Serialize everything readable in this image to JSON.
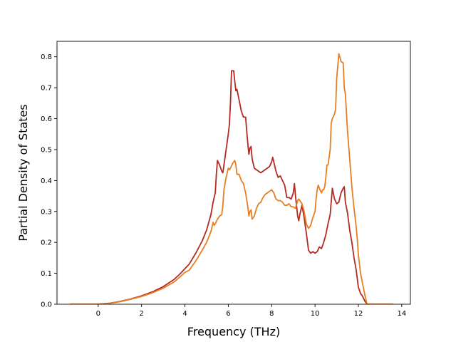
{
  "chart_data": {
    "type": "line",
    "title": "",
    "xlabel": "Frequency (THz)",
    "ylabel": "Partial Density of States",
    "xlim": [
      -1.9,
      14.4
    ],
    "ylim": [
      0.0,
      0.85
    ],
    "xticks": [
      0,
      2,
      4,
      6,
      8,
      10,
      12,
      14
    ],
    "yticks": [
      0.0,
      0.1,
      0.2,
      0.3,
      0.4,
      0.5,
      0.6,
      0.7,
      0.8
    ],
    "xtick_labels": [
      "0",
      "2",
      "4",
      "6",
      "8",
      "10",
      "12",
      "14"
    ],
    "ytick_labels": [
      "0.0",
      "0.1",
      "0.2",
      "0.3",
      "0.4",
      "0.5",
      "0.6",
      "0.7",
      "0.8"
    ],
    "grid": false,
    "legend": "none",
    "series": [
      {
        "color": "#b22a22",
        "points": [
          [
            -1.3,
            0.0
          ],
          [
            0.0,
            0.0
          ],
          [
            0.5,
            0.003
          ],
          [
            1.0,
            0.009
          ],
          [
            1.5,
            0.017
          ],
          [
            2.0,
            0.027
          ],
          [
            2.5,
            0.04
          ],
          [
            3.0,
            0.057
          ],
          [
            3.5,
            0.08
          ],
          [
            3.8,
            0.1
          ],
          [
            4.0,
            0.115
          ],
          [
            4.2,
            0.13
          ],
          [
            4.5,
            0.165
          ],
          [
            4.8,
            0.205
          ],
          [
            5.0,
            0.24
          ],
          [
            5.2,
            0.29
          ],
          [
            5.3,
            0.33
          ],
          [
            5.4,
            0.36
          ],
          [
            5.45,
            0.42
          ],
          [
            5.5,
            0.465
          ],
          [
            5.6,
            0.45
          ],
          [
            5.7,
            0.43
          ],
          [
            5.75,
            0.425
          ],
          [
            5.8,
            0.45
          ],
          [
            5.9,
            0.5
          ],
          [
            6.0,
            0.55
          ],
          [
            6.05,
            0.58
          ],
          [
            6.1,
            0.65
          ],
          [
            6.15,
            0.755
          ],
          [
            6.25,
            0.755
          ],
          [
            6.3,
            0.72
          ],
          [
            6.35,
            0.69
          ],
          [
            6.4,
            0.695
          ],
          [
            6.5,
            0.66
          ],
          [
            6.6,
            0.625
          ],
          [
            6.7,
            0.605
          ],
          [
            6.8,
            0.605
          ],
          [
            6.85,
            0.56
          ],
          [
            6.9,
            0.52
          ],
          [
            6.95,
            0.485
          ],
          [
            7.0,
            0.505
          ],
          [
            7.05,
            0.51
          ],
          [
            7.1,
            0.47
          ],
          [
            7.2,
            0.44
          ],
          [
            7.4,
            0.43
          ],
          [
            7.5,
            0.425
          ],
          [
            7.6,
            0.43
          ],
          [
            7.7,
            0.435
          ],
          [
            7.8,
            0.44
          ],
          [
            7.9,
            0.445
          ],
          [
            8.0,
            0.46
          ],
          [
            8.05,
            0.475
          ],
          [
            8.1,
            0.46
          ],
          [
            8.2,
            0.43
          ],
          [
            8.3,
            0.41
          ],
          [
            8.4,
            0.415
          ],
          [
            8.5,
            0.4
          ],
          [
            8.6,
            0.385
          ],
          [
            8.7,
            0.345
          ],
          [
            8.8,
            0.345
          ],
          [
            8.9,
            0.34
          ],
          [
            9.0,
            0.36
          ],
          [
            9.05,
            0.39
          ],
          [
            9.1,
            0.35
          ],
          [
            9.2,
            0.285
          ],
          [
            9.25,
            0.27
          ],
          [
            9.3,
            0.29
          ],
          [
            9.4,
            0.32
          ],
          [
            9.5,
            0.28
          ],
          [
            9.6,
            0.23
          ],
          [
            9.7,
            0.175
          ],
          [
            9.8,
            0.165
          ],
          [
            9.9,
            0.17
          ],
          [
            10.0,
            0.165
          ],
          [
            10.1,
            0.17
          ],
          [
            10.2,
            0.185
          ],
          [
            10.3,
            0.18
          ],
          [
            10.4,
            0.2
          ],
          [
            10.5,
            0.225
          ],
          [
            10.6,
            0.26
          ],
          [
            10.7,
            0.29
          ],
          [
            10.8,
            0.375
          ],
          [
            10.9,
            0.34
          ],
          [
            11.0,
            0.325
          ],
          [
            11.1,
            0.33
          ],
          [
            11.2,
            0.36
          ],
          [
            11.3,
            0.375
          ],
          [
            11.35,
            0.38
          ],
          [
            11.4,
            0.33
          ],
          [
            11.5,
            0.295
          ],
          [
            11.6,
            0.24
          ],
          [
            11.7,
            0.2
          ],
          [
            11.8,
            0.15
          ],
          [
            11.9,
            0.11
          ],
          [
            12.0,
            0.055
          ],
          [
            12.1,
            0.035
          ],
          [
            12.2,
            0.025
          ],
          [
            12.3,
            0.01
          ],
          [
            12.4,
            0.0
          ],
          [
            13.6,
            0.0
          ]
        ]
      },
      {
        "color": "#e67e22",
        "points": [
          [
            -1.3,
            0.0
          ],
          [
            0.0,
            0.0
          ],
          [
            0.5,
            0.003
          ],
          [
            1.0,
            0.008
          ],
          [
            1.5,
            0.016
          ],
          [
            2.0,
            0.025
          ],
          [
            2.5,
            0.037
          ],
          [
            3.0,
            0.052
          ],
          [
            3.5,
            0.072
          ],
          [
            3.8,
            0.09
          ],
          [
            4.0,
            0.103
          ],
          [
            4.2,
            0.11
          ],
          [
            4.5,
            0.14
          ],
          [
            4.8,
            0.175
          ],
          [
            5.0,
            0.2
          ],
          [
            5.2,
            0.235
          ],
          [
            5.3,
            0.265
          ],
          [
            5.35,
            0.255
          ],
          [
            5.4,
            0.26
          ],
          [
            5.5,
            0.275
          ],
          [
            5.6,
            0.285
          ],
          [
            5.7,
            0.29
          ],
          [
            5.75,
            0.32
          ],
          [
            5.8,
            0.37
          ],
          [
            5.9,
            0.41
          ],
          [
            6.0,
            0.44
          ],
          [
            6.05,
            0.435
          ],
          [
            6.1,
            0.44
          ],
          [
            6.2,
            0.455
          ],
          [
            6.3,
            0.465
          ],
          [
            6.35,
            0.45
          ],
          [
            6.4,
            0.42
          ],
          [
            6.5,
            0.42
          ],
          [
            6.6,
            0.4
          ],
          [
            6.7,
            0.39
          ],
          [
            6.8,
            0.36
          ],
          [
            6.9,
            0.315
          ],
          [
            6.95,
            0.285
          ],
          [
            7.0,
            0.3
          ],
          [
            7.05,
            0.305
          ],
          [
            7.1,
            0.275
          ],
          [
            7.2,
            0.285
          ],
          [
            7.3,
            0.31
          ],
          [
            7.4,
            0.325
          ],
          [
            7.5,
            0.33
          ],
          [
            7.6,
            0.345
          ],
          [
            7.7,
            0.355
          ],
          [
            7.8,
            0.36
          ],
          [
            7.9,
            0.365
          ],
          [
            8.0,
            0.37
          ],
          [
            8.1,
            0.36
          ],
          [
            8.2,
            0.34
          ],
          [
            8.3,
            0.335
          ],
          [
            8.4,
            0.335
          ],
          [
            8.5,
            0.33
          ],
          [
            8.6,
            0.32
          ],
          [
            8.7,
            0.32
          ],
          [
            8.8,
            0.325
          ],
          [
            8.9,
            0.315
          ],
          [
            9.0,
            0.315
          ],
          [
            9.1,
            0.31
          ],
          [
            9.2,
            0.335
          ],
          [
            9.25,
            0.34
          ],
          [
            9.3,
            0.335
          ],
          [
            9.4,
            0.325
          ],
          [
            9.5,
            0.3
          ],
          [
            9.6,
            0.26
          ],
          [
            9.7,
            0.245
          ],
          [
            9.8,
            0.255
          ],
          [
            9.9,
            0.28
          ],
          [
            10.0,
            0.3
          ],
          [
            10.05,
            0.34
          ],
          [
            10.1,
            0.37
          ],
          [
            10.15,
            0.385
          ],
          [
            10.2,
            0.375
          ],
          [
            10.3,
            0.36
          ],
          [
            10.35,
            0.37
          ],
          [
            10.4,
            0.37
          ],
          [
            10.45,
            0.38
          ],
          [
            10.5,
            0.41
          ],
          [
            10.55,
            0.45
          ],
          [
            10.6,
            0.45
          ],
          [
            10.7,
            0.5
          ],
          [
            10.75,
            0.585
          ],
          [
            10.8,
            0.6
          ],
          [
            10.9,
            0.615
          ],
          [
            10.95,
            0.63
          ],
          [
            11.0,
            0.73
          ],
          [
            11.1,
            0.81
          ],
          [
            11.2,
            0.785
          ],
          [
            11.3,
            0.78
          ],
          [
            11.35,
            0.7
          ],
          [
            11.4,
            0.68
          ],
          [
            11.45,
            0.62
          ],
          [
            11.5,
            0.56
          ],
          [
            11.6,
            0.47
          ],
          [
            11.7,
            0.38
          ],
          [
            11.8,
            0.31
          ],
          [
            11.9,
            0.25
          ],
          [
            11.95,
            0.21
          ],
          [
            12.0,
            0.16
          ],
          [
            12.1,
            0.1
          ],
          [
            12.2,
            0.065
          ],
          [
            12.3,
            0.03
          ],
          [
            12.4,
            0.0
          ],
          [
            13.6,
            0.0
          ]
        ]
      }
    ]
  }
}
